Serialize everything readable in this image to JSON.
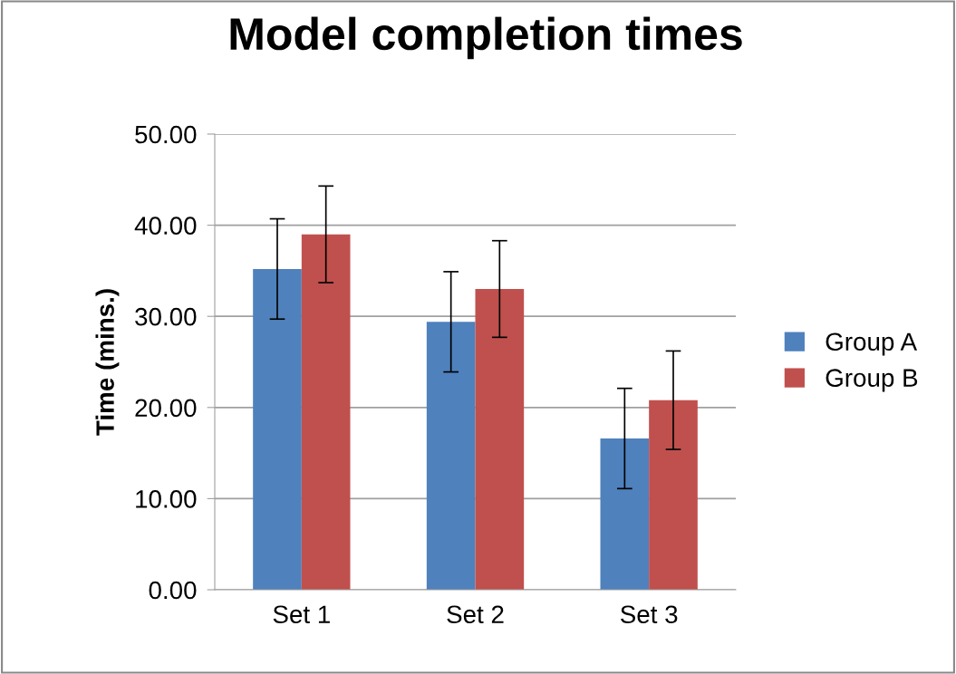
{
  "chart_data": {
    "type": "bar",
    "title": "Model completion times",
    "ylabel": "Time (mins.)",
    "categories": [
      "Set 1",
      "Set 2",
      "Set 3"
    ],
    "series": [
      {
        "name": "Group A",
        "color": "#4f81bd",
        "values": [
          35.2,
          29.4,
          16.6
        ],
        "errors": [
          5.5,
          5.5,
          5.5
        ]
      },
      {
        "name": "Group B",
        "color": "#c0504d",
        "values": [
          39.0,
          33.0,
          20.8
        ],
        "errors": [
          5.3,
          5.3,
          5.4
        ]
      }
    ],
    "ylim": [
      0,
      50
    ],
    "yticks": [
      {
        "value": 0,
        "label": "0.00"
      },
      {
        "value": 10,
        "label": "10.00"
      },
      {
        "value": 20,
        "label": "20.00"
      },
      {
        "value": 30,
        "label": "30.00"
      },
      {
        "value": 40,
        "label": "40.00"
      },
      {
        "value": 50,
        "label": "50.00"
      }
    ],
    "grid": "y",
    "legend": "right"
  }
}
